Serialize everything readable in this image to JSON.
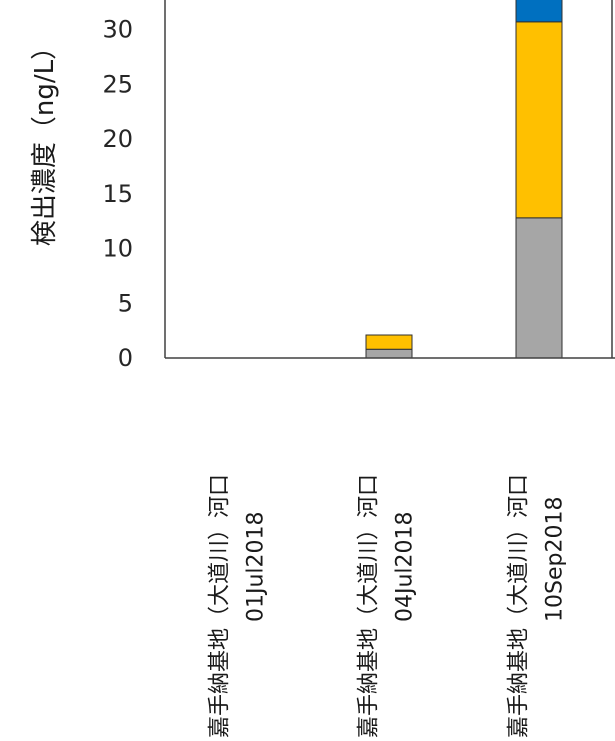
{
  "chart_data": {
    "type": "bar",
    "stacked": true,
    "ylabel": "検出濃度（ng/L）",
    "ylim": [
      0,
      35
    ],
    "yticks": [
      0,
      5,
      10,
      15,
      20,
      25,
      30
    ],
    "grid": false,
    "categories": [
      {
        "line1": "嘉手納基地（大道川）河口",
        "line2": "01Jul2018"
      },
      {
        "line1": "嘉手納基地（大道川）河口",
        "line2": "04Jul2018"
      },
      {
        "line1": "嘉手納基地（大道川）河口",
        "line2": "10Sep2018"
      }
    ],
    "series": [
      {
        "color": "#a6a6a6",
        "values": [
          0,
          0.8,
          12.8
        ]
      },
      {
        "color": "#ffc000",
        "values": [
          0,
          1.3,
          17.9
        ]
      },
      {
        "color": "#0070c0",
        "values": [
          0,
          0,
          4.3
        ]
      }
    ]
  }
}
